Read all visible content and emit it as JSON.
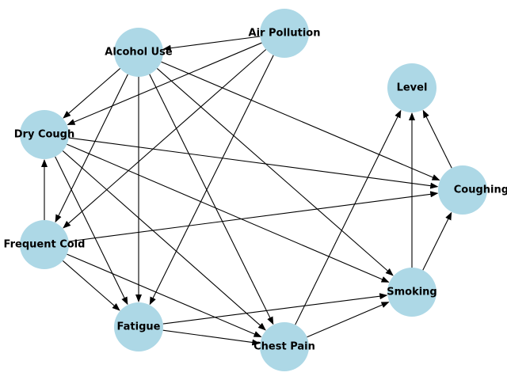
{
  "graph": {
    "directed": true,
    "node_color": "#add8e6",
    "edge_color": "#000000",
    "nodes": [
      {
        "id": "air",
        "label": "Air Pollution"
      },
      {
        "id": "alcohol",
        "label": "Alcohol Use"
      },
      {
        "id": "level",
        "label": "Level"
      },
      {
        "id": "dry",
        "label": "Dry Cough"
      },
      {
        "id": "blood",
        "label": "Coughing of Blood"
      },
      {
        "id": "cold",
        "label": "Frequent Cold"
      },
      {
        "id": "smoking",
        "label": "Smoking"
      },
      {
        "id": "fatigue",
        "label": "Fatigue"
      },
      {
        "id": "chest",
        "label": "Chest Pain"
      }
    ],
    "edges": [
      {
        "from": "air",
        "to": "alcohol"
      },
      {
        "from": "air",
        "to": "dry"
      },
      {
        "from": "air",
        "to": "cold"
      },
      {
        "from": "air",
        "to": "fatigue"
      },
      {
        "from": "alcohol",
        "to": "dry"
      },
      {
        "from": "alcohol",
        "to": "cold"
      },
      {
        "from": "alcohol",
        "to": "fatigue"
      },
      {
        "from": "alcohol",
        "to": "chest"
      },
      {
        "from": "alcohol",
        "to": "smoking"
      },
      {
        "from": "alcohol",
        "to": "blood"
      },
      {
        "from": "dry",
        "to": "blood"
      },
      {
        "from": "dry",
        "to": "smoking"
      },
      {
        "from": "dry",
        "to": "fatigue"
      },
      {
        "from": "dry",
        "to": "chest"
      },
      {
        "from": "cold",
        "to": "dry"
      },
      {
        "from": "cold",
        "to": "blood"
      },
      {
        "from": "cold",
        "to": "fatigue"
      },
      {
        "from": "cold",
        "to": "chest"
      },
      {
        "from": "fatigue",
        "to": "smoking"
      },
      {
        "from": "fatigue",
        "to": "chest"
      },
      {
        "from": "chest",
        "to": "smoking"
      },
      {
        "from": "chest",
        "to": "level"
      },
      {
        "from": "smoking",
        "to": "level"
      },
      {
        "from": "smoking",
        "to": "blood"
      },
      {
        "from": "blood",
        "to": "level"
      }
    ]
  }
}
